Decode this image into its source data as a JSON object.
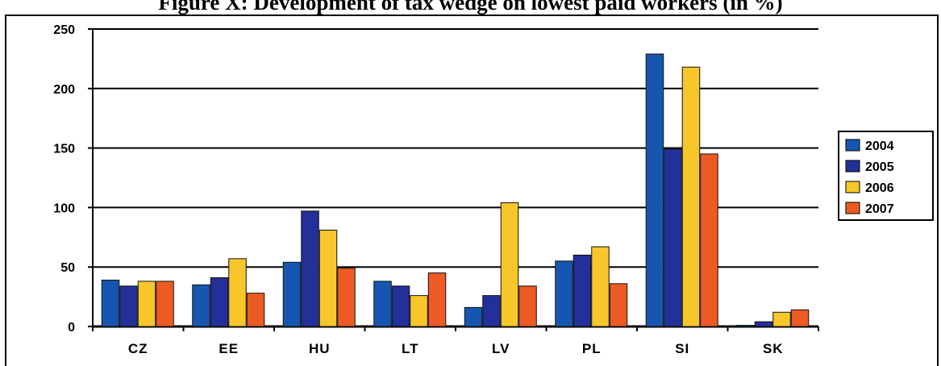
{
  "title": "Figure X: Development of tax wedge on lowest paid workers (in %)",
  "chart_data": {
    "type": "bar",
    "categories": [
      "CZ",
      "EE",
      "HU",
      "LT",
      "LV",
      "PL",
      "SI",
      "SK"
    ],
    "series": [
      {
        "name": "2004",
        "color": "#1656b0",
        "values": [
          39,
          35,
          54,
          38,
          16,
          55,
          229,
          1
        ]
      },
      {
        "name": "2005",
        "color": "#23309a",
        "values": [
          34,
          41,
          97,
          34,
          26,
          60,
          149,
          4
        ]
      },
      {
        "name": "2006",
        "color": "#f7c62a",
        "values": [
          38,
          57,
          81,
          26,
          104,
          67,
          218,
          12
        ]
      },
      {
        "name": "2007",
        "color": "#ee5a24",
        "values": [
          38,
          28,
          49,
          45,
          34,
          36,
          145,
          14
        ]
      }
    ],
    "ylim": [
      0,
      250
    ],
    "yticks": [
      0,
      50,
      100,
      150,
      200,
      250
    ],
    "grid": true,
    "legend": "right",
    "xlabel": "",
    "ylabel": ""
  }
}
